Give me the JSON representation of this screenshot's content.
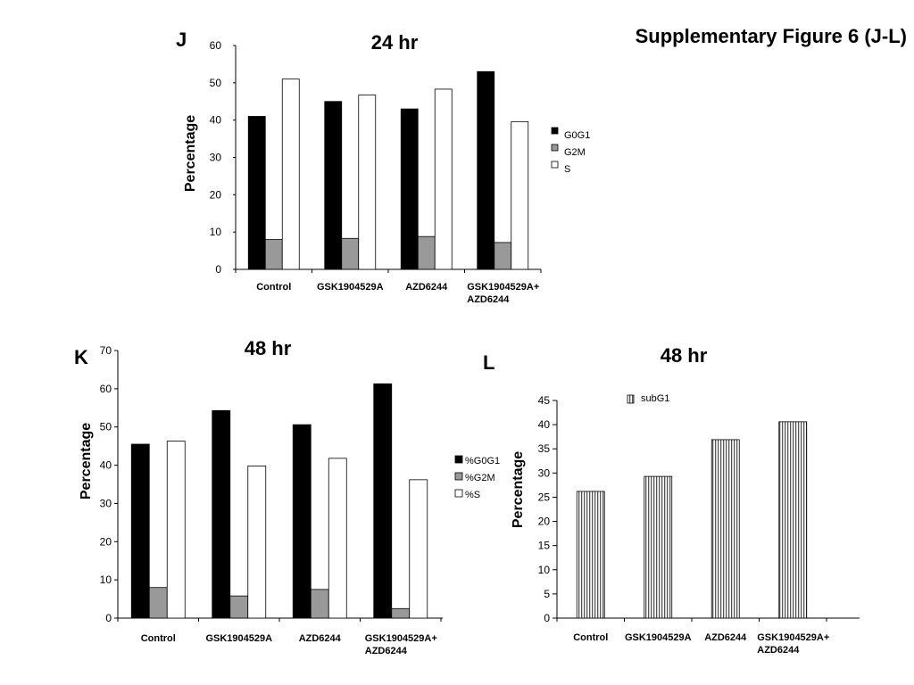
{
  "figure_title": "Supplementary Figure 6 (J-L)",
  "colors": {
    "G0G1": "#000000",
    "G2M": "#999999",
    "S": "#ffffff",
    "subG1_stripe": "#555555",
    "axis": "#000000"
  },
  "chart_data": [
    {
      "panel": "J",
      "type": "bar",
      "title": "24 hr",
      "ylabel": "Percentage",
      "xlabel": "",
      "ylim": [
        0,
        60
      ],
      "yticks": [
        0,
        10,
        20,
        30,
        40,
        50,
        60
      ],
      "categories": [
        [
          "Control"
        ],
        [
          "GSK1904529A"
        ],
        [
          "AZD6244"
        ],
        [
          "GSK1904529A+",
          "AZD6244"
        ]
      ],
      "series": [
        {
          "name": "G0G1",
          "style": "G0G1",
          "values": [
            41,
            45,
            43,
            53
          ]
        },
        {
          "name": "G2M",
          "style": "G2M",
          "values": [
            8,
            8.3,
            8.8,
            7.2
          ]
        },
        {
          "name": "S",
          "style": "S",
          "values": [
            51,
            46.7,
            48.3,
            39.6
          ]
        }
      ],
      "legend": "right",
      "grid": false
    },
    {
      "panel": "K",
      "type": "bar",
      "title": "48 hr",
      "ylabel": "Percentage",
      "xlabel": "",
      "ylim": [
        0,
        70
      ],
      "yticks": [
        0,
        10,
        20,
        30,
        40,
        50,
        60,
        70
      ],
      "categories": [
        [
          "Control"
        ],
        [
          "GSK1904529A"
        ],
        [
          "AZD6244"
        ],
        [
          "GSK1904529A+",
          "AZD6244"
        ]
      ],
      "series": [
        {
          "name": "%G0G1",
          "style": "G0G1",
          "values": [
            45.5,
            54.3,
            50.6,
            61.3
          ]
        },
        {
          "name": "%G2M",
          "style": "G2M",
          "values": [
            8,
            5.8,
            7.5,
            2.5
          ]
        },
        {
          "name": "%S",
          "style": "S",
          "values": [
            46.3,
            39.8,
            41.8,
            36.2
          ]
        }
      ],
      "legend": "right",
      "grid": false
    },
    {
      "panel": "L",
      "type": "bar",
      "title": "48 hr",
      "ylabel": "Percentage",
      "xlabel": "",
      "ylim": [
        0,
        45
      ],
      "yticks": [
        0,
        5,
        10,
        15,
        20,
        25,
        30,
        35,
        40,
        45
      ],
      "categories": [
        [
          "Control"
        ],
        [
          "GSK1904529A"
        ],
        [
          "AZD6244"
        ],
        [
          "GSK1904529A+",
          "AZD6244"
        ]
      ],
      "series": [
        {
          "name": "subG1",
          "style": "subG1",
          "values": [
            26.2,
            29.3,
            36.9,
            40.6
          ]
        }
      ],
      "legend": "top",
      "grid": false
    }
  ]
}
